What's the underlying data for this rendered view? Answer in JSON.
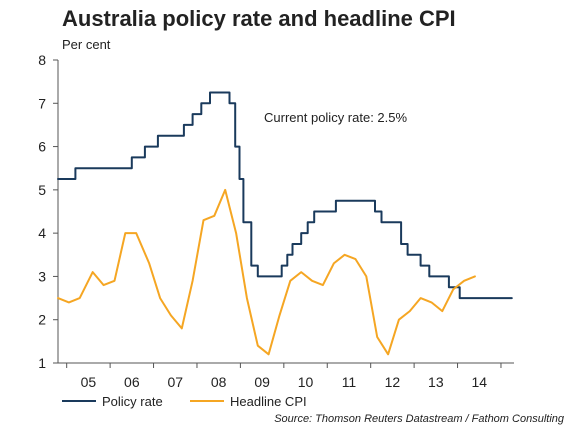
{
  "title": "Australia policy rate and headline CPI",
  "ylabel": "Per cent",
  "annotation": "Current policy rate: 2.5%",
  "source": "Source: Thomson Reuters Datastream / Fathom Consulting",
  "colors": {
    "policy_rate": "#1a3a5c",
    "headline_cpi": "#f5a623",
    "axis": "#555555"
  },
  "chart_data": {
    "type": "line",
    "title": "Australia policy rate and headline CPI",
    "ylabel": "Per cent",
    "xlim": [
      2004.3,
      2014.8
    ],
    "ylim": [
      1,
      8
    ],
    "yticks": [
      1,
      2,
      3,
      4,
      5,
      6,
      7,
      8
    ],
    "xticks": [
      {
        "value": 2005,
        "label": "05"
      },
      {
        "value": 2006,
        "label": "06"
      },
      {
        "value": 2007,
        "label": "07"
      },
      {
        "value": 2008,
        "label": "08"
      },
      {
        "value": 2009,
        "label": "09"
      },
      {
        "value": 2010,
        "label": "10"
      },
      {
        "value": 2011,
        "label": "11"
      },
      {
        "value": 2012,
        "label": "12"
      },
      {
        "value": 2013,
        "label": "13"
      },
      {
        "value": 2014,
        "label": "14"
      }
    ],
    "grid": false,
    "legend_position": "bottom",
    "series": [
      {
        "name": "Policy rate",
        "step": true,
        "points": [
          [
            2004.3,
            5.25
          ],
          [
            2004.7,
            5.25
          ],
          [
            2004.7,
            5.5
          ],
          [
            2006.0,
            5.5
          ],
          [
            2006.0,
            5.75
          ],
          [
            2006.3,
            5.75
          ],
          [
            2006.3,
            6.0
          ],
          [
            2006.6,
            6.0
          ],
          [
            2006.6,
            6.25
          ],
          [
            2007.2,
            6.25
          ],
          [
            2007.2,
            6.5
          ],
          [
            2007.4,
            6.5
          ],
          [
            2007.4,
            6.75
          ],
          [
            2007.6,
            6.75
          ],
          [
            2007.6,
            7.0
          ],
          [
            2007.8,
            7.0
          ],
          [
            2007.8,
            7.25
          ],
          [
            2008.1,
            7.25
          ],
          [
            2008.1,
            7.25
          ],
          [
            2008.25,
            7.25
          ],
          [
            2008.25,
            7.0
          ],
          [
            2008.38,
            7.0
          ],
          [
            2008.38,
            6.0
          ],
          [
            2008.48,
            6.0
          ],
          [
            2008.48,
            5.25
          ],
          [
            2008.57,
            5.25
          ],
          [
            2008.57,
            4.25
          ],
          [
            2008.75,
            4.25
          ],
          [
            2008.75,
            3.25
          ],
          [
            2008.9,
            3.25
          ],
          [
            2008.9,
            3.0
          ],
          [
            2009.45,
            3.0
          ],
          [
            2009.45,
            3.25
          ],
          [
            2009.58,
            3.25
          ],
          [
            2009.58,
            3.5
          ],
          [
            2009.7,
            3.5
          ],
          [
            2009.7,
            3.75
          ],
          [
            2009.9,
            3.75
          ],
          [
            2009.9,
            4.0
          ],
          [
            2010.05,
            4.0
          ],
          [
            2010.05,
            4.25
          ],
          [
            2010.2,
            4.25
          ],
          [
            2010.2,
            4.5
          ],
          [
            2010.7,
            4.5
          ],
          [
            2010.7,
            4.75
          ],
          [
            2011.6,
            4.75
          ],
          [
            2011.6,
            4.5
          ],
          [
            2011.75,
            4.5
          ],
          [
            2011.75,
            4.25
          ],
          [
            2012.2,
            4.25
          ],
          [
            2012.2,
            3.75
          ],
          [
            2012.35,
            3.75
          ],
          [
            2012.35,
            3.5
          ],
          [
            2012.65,
            3.5
          ],
          [
            2012.65,
            3.25
          ],
          [
            2012.85,
            3.25
          ],
          [
            2012.85,
            3.0
          ],
          [
            2013.3,
            3.0
          ],
          [
            2013.3,
            2.75
          ],
          [
            2013.55,
            2.75
          ],
          [
            2013.55,
            2.5
          ],
          [
            2014.75,
            2.5
          ]
        ]
      },
      {
        "name": "Headline CPI",
        "step": false,
        "points": [
          [
            2004.3,
            2.5
          ],
          [
            2004.55,
            2.4
          ],
          [
            2004.8,
            2.5
          ],
          [
            2005.1,
            3.1
          ],
          [
            2005.35,
            2.8
          ],
          [
            2005.6,
            2.9
          ],
          [
            2005.85,
            4.0
          ],
          [
            2006.1,
            4.0
          ],
          [
            2006.4,
            3.3
          ],
          [
            2006.65,
            2.5
          ],
          [
            2006.9,
            2.1
          ],
          [
            2007.15,
            1.8
          ],
          [
            2007.4,
            2.9
          ],
          [
            2007.65,
            4.3
          ],
          [
            2007.9,
            4.4
          ],
          [
            2008.15,
            5.0
          ],
          [
            2008.4,
            4.0
          ],
          [
            2008.65,
            2.5
          ],
          [
            2008.9,
            1.4
          ],
          [
            2009.15,
            1.2
          ],
          [
            2009.4,
            2.1
          ],
          [
            2009.65,
            2.9
          ],
          [
            2009.9,
            3.1
          ],
          [
            2010.15,
            2.9
          ],
          [
            2010.4,
            2.8
          ],
          [
            2010.65,
            3.3
          ],
          [
            2010.9,
            3.5
          ],
          [
            2011.15,
            3.4
          ],
          [
            2011.4,
            3.0
          ],
          [
            2011.65,
            1.6
          ],
          [
            2011.9,
            1.2
          ],
          [
            2012.15,
            2.0
          ],
          [
            2012.4,
            2.2
          ],
          [
            2012.65,
            2.5
          ],
          [
            2012.9,
            2.4
          ],
          [
            2013.15,
            2.2
          ],
          [
            2013.4,
            2.7
          ],
          [
            2013.65,
            2.9
          ],
          [
            2013.9,
            3.0
          ]
        ]
      }
    ]
  }
}
